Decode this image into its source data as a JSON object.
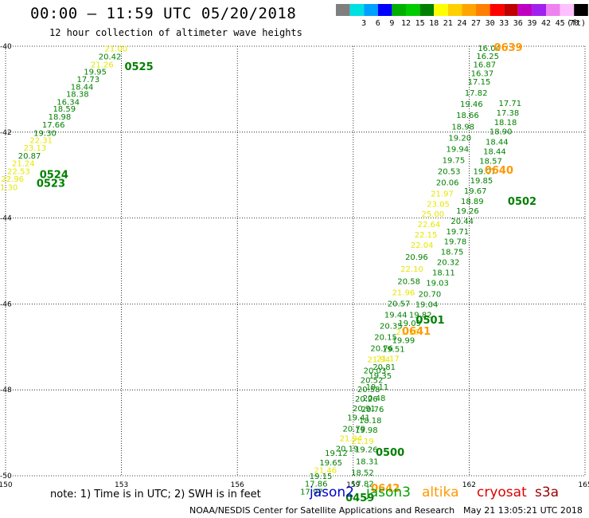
{
  "title": "00:00 – 11:59 UTC 05/20/2018",
  "subtitle": "12 hour collection of altimeter wave heights",
  "legend": {
    "unit": "(ft)",
    "items": [
      {
        "label": "",
        "color": "#7f7f7f"
      },
      {
        "label": "3",
        "color": "#00e0e0"
      },
      {
        "label": "6",
        "color": "#00a0ff"
      },
      {
        "label": "9",
        "color": "#0000ff"
      },
      {
        "label": "12",
        "color": "#00b000"
      },
      {
        "label": "15",
        "color": "#00cc00"
      },
      {
        "label": "18",
        "color": "#008000"
      },
      {
        "label": "21",
        "color": "#ffff00"
      },
      {
        "label": "24",
        "color": "#ffd000"
      },
      {
        "label": "27",
        "color": "#ffa500"
      },
      {
        "label": "30",
        "color": "#ff7f00"
      },
      {
        "label": "33",
        "color": "#ff0000"
      },
      {
        "label": "36",
        "color": "#c00000"
      },
      {
        "label": "39",
        "color": "#c000c0"
      },
      {
        "label": "42",
        "color": "#a020f0"
      },
      {
        "label": "45",
        "color": "#ee82ee"
      },
      {
        "label": "70",
        "color": "#ffc0ff"
      },
      {
        "label": "",
        "color": "#000000"
      }
    ]
  },
  "note": "note: 1) Time is in UTC; 2) SWH is in feet",
  "satellites": [
    {
      "name": "jason2",
      "color": "#0000cc"
    },
    {
      "name": "jason3",
      "color": "#00a000"
    },
    {
      "name": "altika",
      "color": "#ff9900"
    },
    {
      "name": "cryosat",
      "color": "#dd0000"
    },
    {
      "name": "s3a",
      "color": "#990000"
    }
  ],
  "credit": "NOAA/NESDIS Center for Satellite Applications and Research",
  "timestamp": "May 21 13:05:21 UTC 2018",
  "chart_data": {
    "type": "scatter",
    "title": "00:00 – 11:59 UTC 05/20/2018",
    "subtitle": "12 hour collection of altimeter wave heights",
    "xlabel": "",
    "ylabel": "",
    "xlim": [
      150,
      165
    ],
    "ylim": [
      -50,
      -40
    ],
    "x_ticks": [
      150,
      153,
      156,
      159,
      162,
      165
    ],
    "y_ticks": [
      -40,
      -42,
      -44,
      -46,
      -48,
      -50
    ],
    "x_tick_labels": [
      "150",
      "153",
      "156",
      "159",
      "162",
      "165"
    ],
    "y_tick_labels": [
      "-40",
      "-42",
      "-44",
      "-46",
      "-48",
      "-50"
    ],
    "grid": "dotted",
    "colors": {
      "green": "#008000",
      "yellow": "#e6e600",
      "orange": "#ff9900"
    },
    "labels": [
      {
        "x": 152.86,
        "y": -40.05,
        "text": "21.00",
        "c": "yellow"
      },
      {
        "x": 152.7,
        "y": -40.23,
        "text": "20.42",
        "c": "green"
      },
      {
        "x": 152.5,
        "y": -40.42,
        "text": "21.26",
        "c": "yellow"
      },
      {
        "x": 152.32,
        "y": -40.58,
        "text": "19.95",
        "c": "green"
      },
      {
        "x": 152.14,
        "y": -40.76,
        "text": "17.73",
        "c": "green"
      },
      {
        "x": 151.98,
        "y": -40.94,
        "text": "18.44",
        "c": "green"
      },
      {
        "x": 151.86,
        "y": -41.1,
        "text": "18.38",
        "c": "green"
      },
      {
        "x": 151.62,
        "y": -41.29,
        "text": "16.34",
        "c": "green"
      },
      {
        "x": 151.52,
        "y": -41.45,
        "text": "18.59",
        "c": "green"
      },
      {
        "x": 151.4,
        "y": -41.63,
        "text": "18.98",
        "c": "green"
      },
      {
        "x": 151.24,
        "y": -41.82,
        "text": "17.66",
        "c": "green"
      },
      {
        "x": 151.02,
        "y": -42.01,
        "text": "19.30",
        "c": "green"
      },
      {
        "x": 150.92,
        "y": -42.18,
        "text": "22.31",
        "c": "yellow"
      },
      {
        "x": 150.76,
        "y": -42.36,
        "text": "23.13",
        "c": "yellow"
      },
      {
        "x": 150.62,
        "y": -42.54,
        "text": "20.87",
        "c": "green"
      },
      {
        "x": 150.46,
        "y": -42.72,
        "text": "21.24",
        "c": "yellow"
      },
      {
        "x": 150.34,
        "y": -42.9,
        "text": "22.53",
        "c": "yellow"
      },
      {
        "x": 150.18,
        "y": -43.08,
        "text": "22.96",
        "c": "yellow"
      },
      {
        "x": 150.02,
        "y": -43.27,
        "text": "21.30",
        "c": "yellow"
      },
      {
        "x": 162.52,
        "y": -40.04,
        "text": "16.04",
        "c": "green"
      },
      {
        "x": 162.48,
        "y": -40.22,
        "text": "16.25",
        "c": "green"
      },
      {
        "x": 162.4,
        "y": -40.42,
        "text": "16.87",
        "c": "green"
      },
      {
        "x": 162.34,
        "y": -40.62,
        "text": "16.37",
        "c": "green"
      },
      {
        "x": 162.26,
        "y": -40.82,
        "text": "17.15",
        "c": "green"
      },
      {
        "x": 162.18,
        "y": -41.08,
        "text": "17.82",
        "c": "green"
      },
      {
        "x": 162.06,
        "y": -41.34,
        "text": "19.46",
        "c": "green"
      },
      {
        "x": 161.96,
        "y": -41.6,
        "text": "18.66",
        "c": "green"
      },
      {
        "x": 161.84,
        "y": -41.86,
        "text": "18.98",
        "c": "green"
      },
      {
        "x": 161.76,
        "y": -42.12,
        "text": "19.20",
        "c": "green"
      },
      {
        "x": 161.7,
        "y": -42.38,
        "text": "19.94",
        "c": "green"
      },
      {
        "x": 161.6,
        "y": -42.64,
        "text": "19.75",
        "c": "green"
      },
      {
        "x": 161.48,
        "y": -42.9,
        "text": "20.53",
        "c": "green"
      },
      {
        "x": 161.44,
        "y": -43.16,
        "text": "20.06",
        "c": "green"
      },
      {
        "x": 161.3,
        "y": -43.42,
        "text": "21.97",
        "c": "yellow"
      },
      {
        "x": 161.2,
        "y": -43.66,
        "text": "23.05",
        "c": "yellow"
      },
      {
        "x": 161.06,
        "y": -43.9,
        "text": "25.00",
        "c": "yellow"
      },
      {
        "x": 160.96,
        "y": -44.14,
        "text": "22.64",
        "c": "yellow"
      },
      {
        "x": 160.88,
        "y": -44.38,
        "text": "22.15",
        "c": "yellow"
      },
      {
        "x": 160.78,
        "y": -44.62,
        "text": "22.04",
        "c": "yellow"
      },
      {
        "x": 160.64,
        "y": -44.9,
        "text": "20.96",
        "c": "green"
      },
      {
        "x": 160.52,
        "y": -45.18,
        "text": "22.10",
        "c": "yellow"
      },
      {
        "x": 160.44,
        "y": -45.46,
        "text": "20.58",
        "c": "green"
      },
      {
        "x": 160.3,
        "y": -45.72,
        "text": "21.96",
        "c": "yellow"
      },
      {
        "x": 160.18,
        "y": -45.98,
        "text": "20.57",
        "c": "green"
      },
      {
        "x": 160.1,
        "y": -46.24,
        "text": "19.44",
        "c": "green"
      },
      {
        "x": 159.98,
        "y": -46.5,
        "text": "20.35",
        "c": "green"
      },
      {
        "x": 159.84,
        "y": -46.76,
        "text": "20.15",
        "c": "green"
      },
      {
        "x": 159.74,
        "y": -47.02,
        "text": "20.76",
        "c": "green"
      },
      {
        "x": 159.66,
        "y": -47.28,
        "text": "21.94",
        "c": "yellow"
      },
      {
        "x": 159.56,
        "y": -47.54,
        "text": "20.03",
        "c": "green"
      },
      {
        "x": 159.48,
        "y": -47.76,
        "text": "20.52",
        "c": "green"
      },
      {
        "x": 159.4,
        "y": -47.98,
        "text": "20.58",
        "c": "green"
      },
      {
        "x": 159.34,
        "y": -48.2,
        "text": "20.26",
        "c": "green"
      },
      {
        "x": 159.28,
        "y": -48.42,
        "text": "20.91",
        "c": "green"
      },
      {
        "x": 159.14,
        "y": -48.64,
        "text": "19.41",
        "c": "green"
      },
      {
        "x": 159.02,
        "y": -48.9,
        "text": "20.79",
        "c": "green"
      },
      {
        "x": 158.94,
        "y": -49.12,
        "text": "21.94",
        "c": "yellow"
      },
      {
        "x": 158.84,
        "y": -49.36,
        "text": "20.19",
        "c": "green"
      },
      {
        "x": 158.56,
        "y": -49.46,
        "text": "19.12",
        "c": "green"
      },
      {
        "x": 158.42,
        "y": -49.68,
        "text": "19.65",
        "c": "green"
      },
      {
        "x": 158.28,
        "y": -49.86,
        "text": "21.46",
        "c": "yellow"
      },
      {
        "x": 158.16,
        "y": -50.0,
        "text": "19.15",
        "c": "green"
      },
      {
        "x": 158.04,
        "y": -50.18,
        "text": "17.86",
        "c": "green"
      },
      {
        "x": 157.92,
        "y": -50.36,
        "text": "17.97",
        "c": "green"
      },
      {
        "x": 159.24,
        "y": -50.18,
        "text": "17.82",
        "c": "green"
      },
      {
        "x": 159.24,
        "y": -49.92,
        "text": "18.52",
        "c": "green"
      },
      {
        "x": 159.36,
        "y": -49.66,
        "text": "18.31",
        "c": "green"
      },
      {
        "x": 159.34,
        "y": -49.38,
        "text": "19.26",
        "c": "green"
      },
      {
        "x": 159.24,
        "y": -49.18,
        "text": "21.19",
        "c": "yellow"
      },
      {
        "x": 159.34,
        "y": -48.92,
        "text": "19.98",
        "c": "green"
      },
      {
        "x": 159.44,
        "y": -48.7,
        "text": "18.18",
        "c": "green"
      },
      {
        "x": 159.5,
        "y": -48.44,
        "text": "20.76",
        "c": "green"
      },
      {
        "x": 159.54,
        "y": -48.18,
        "text": "20.48",
        "c": "green"
      },
      {
        "x": 159.62,
        "y": -47.92,
        "text": "19.11",
        "c": "green"
      },
      {
        "x": 159.7,
        "y": -47.66,
        "text": "19.35",
        "c": "green"
      },
      {
        "x": 159.8,
        "y": -47.46,
        "text": "20.81",
        "c": "green"
      },
      {
        "x": 159.9,
        "y": -47.26,
        "text": "21.17",
        "c": "yellow"
      },
      {
        "x": 160.04,
        "y": -47.04,
        "text": "19.51",
        "c": "green"
      },
      {
        "x": 160.3,
        "y": -46.84,
        "text": "19.99",
        "c": "green"
      },
      {
        "x": 160.4,
        "y": -46.64,
        "text": "21.36",
        "c": "yellow"
      },
      {
        "x": 160.46,
        "y": -46.44,
        "text": "19.09",
        "c": "green"
      },
      {
        "x": 160.74,
        "y": -46.24,
        "text": "19.82",
        "c": "green"
      },
      {
        "x": 160.9,
        "y": -46.0,
        "text": "19.04",
        "c": "green"
      },
      {
        "x": 160.98,
        "y": -45.76,
        "text": "20.70",
        "c": "green"
      },
      {
        "x": 161.18,
        "y": -45.5,
        "text": "19.03",
        "c": "green"
      },
      {
        "x": 161.34,
        "y": -45.26,
        "text": "18.11",
        "c": "green"
      },
      {
        "x": 161.46,
        "y": -45.02,
        "text": "20.32",
        "c": "green"
      },
      {
        "x": 161.56,
        "y": -44.78,
        "text": "18.75",
        "c": "green"
      },
      {
        "x": 161.64,
        "y": -44.54,
        "text": "19.78",
        "c": "green"
      },
      {
        "x": 161.7,
        "y": -44.3,
        "text": "19.71",
        "c": "green"
      },
      {
        "x": 161.82,
        "y": -44.06,
        "text": "20.44",
        "c": "green"
      },
      {
        "x": 161.96,
        "y": -43.82,
        "text": "19.26",
        "c": "green"
      },
      {
        "x": 162.08,
        "y": -43.6,
        "text": "18.89",
        "c": "green"
      },
      {
        "x": 162.16,
        "y": -43.36,
        "text": "19.67",
        "c": "green"
      },
      {
        "x": 162.32,
        "y": -43.12,
        "text": "19.85",
        "c": "green"
      },
      {
        "x": 162.4,
        "y": -42.9,
        "text": "19.07",
        "c": "green"
      },
      {
        "x": 162.56,
        "y": -42.66,
        "text": "18.57",
        "c": "green"
      },
      {
        "x": 162.66,
        "y": -42.44,
        "text": "18.44",
        "c": "green"
      },
      {
        "x": 162.72,
        "y": -42.22,
        "text": "18.44",
        "c": "green"
      },
      {
        "x": 162.82,
        "y": -41.98,
        "text": "18.90",
        "c": "green"
      },
      {
        "x": 162.94,
        "y": -41.76,
        "text": "18.18",
        "c": "green"
      },
      {
        "x": 163.0,
        "y": -41.54,
        "text": "17.38",
        "c": "green"
      },
      {
        "x": 163.06,
        "y": -41.32,
        "text": "17.71",
        "c": "green"
      }
    ],
    "times": [
      {
        "x": 153.08,
        "y": -40.46,
        "text": "0525",
        "c": "green"
      },
      {
        "x": 150.88,
        "y": -42.98,
        "text": "0524",
        "c": "green"
      },
      {
        "x": 150.8,
        "y": -43.18,
        "text": "0523",
        "c": "green"
      },
      {
        "x": 162.64,
        "y": -40.02,
        "text": "0639",
        "c": "orange"
      },
      {
        "x": 162.4,
        "y": -42.88,
        "text": "0640",
        "c": "orange"
      },
      {
        "x": 163.0,
        "y": -43.6,
        "text": "0502",
        "c": "green"
      },
      {
        "x": 160.62,
        "y": -46.36,
        "text": "0501",
        "c": "green"
      },
      {
        "x": 159.58,
        "y": -49.44,
        "text": "0500",
        "c": "green"
      },
      {
        "x": 158.8,
        "y": -50.5,
        "text": "0459",
        "c": "green"
      },
      {
        "x": 159.46,
        "y": -50.28,
        "text": "0642",
        "c": "orange"
      },
      {
        "x": 160.26,
        "y": -46.62,
        "text": "0641",
        "c": "orange"
      }
    ]
  }
}
